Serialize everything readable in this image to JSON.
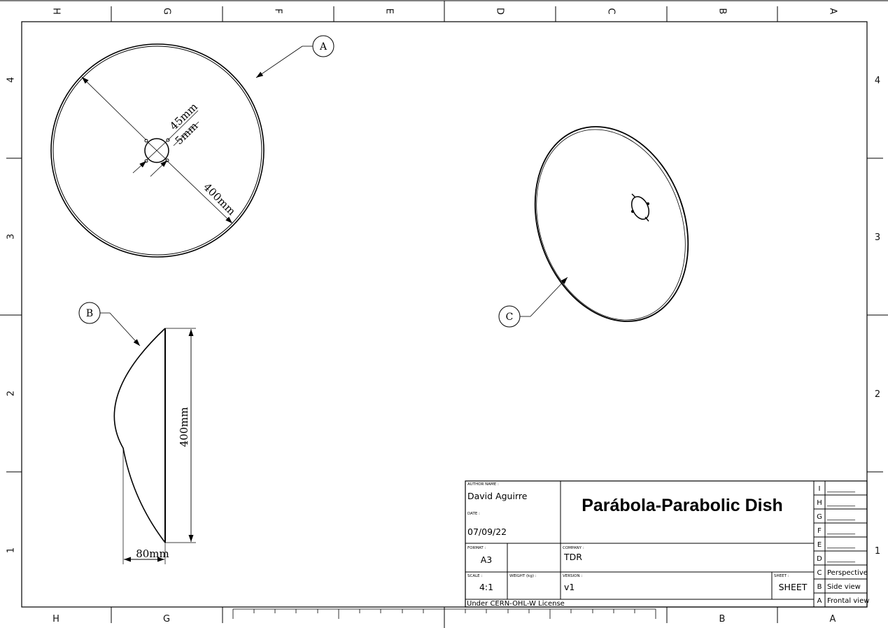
{
  "frame": {
    "top_zones": [
      "H",
      "G",
      "F",
      "E",
      "D",
      "C",
      "B",
      "A"
    ],
    "bottom_zones_left": [
      "H",
      "G"
    ],
    "bottom_zones_right": [
      "B",
      "A"
    ],
    "left_rows": [
      "4",
      "3",
      "2",
      "1"
    ],
    "right_rows": [
      "4",
      "3",
      "2",
      "1"
    ]
  },
  "views": {
    "frontal": {
      "balloon": "A",
      "diameter_outer": "400mm",
      "diameter_hole": "45mm",
      "hole_offset": "5mm"
    },
    "side": {
      "balloon": "B",
      "height": "400mm",
      "depth": "80mm"
    },
    "perspective": {
      "balloon": "C"
    }
  },
  "title_block": {
    "author_label": "AUTHOR NAME :",
    "author": "David Aguirre",
    "date_label": "DATE :",
    "date": "07/09/22",
    "title": "Parábola-Parabolic Dish",
    "format_label": "FORMAT :",
    "format": "A3",
    "company_label": "COMPANY :",
    "company": "TDR",
    "scale_label": "SCALE :",
    "scale": "4:1",
    "weight_label": "WEIGHT (kg) :",
    "weight": "",
    "version_label": "VERSION :",
    "version": "v1",
    "sheet_label": "SHEET :",
    "sheet": "SHEET",
    "license": "Under CERN-OHL-W License"
  },
  "revisions": [
    {
      "letter": "I",
      "text": "________"
    },
    {
      "letter": "H",
      "text": "________"
    },
    {
      "letter": "G",
      "text": "________"
    },
    {
      "letter": "F",
      "text": "________"
    },
    {
      "letter": "E",
      "text": "________"
    },
    {
      "letter": "D",
      "text": "________"
    },
    {
      "letter": "C",
      "text": "Perspective"
    },
    {
      "letter": "B",
      "text": "Side view"
    },
    {
      "letter": "A",
      "text": "Frontal view"
    }
  ]
}
